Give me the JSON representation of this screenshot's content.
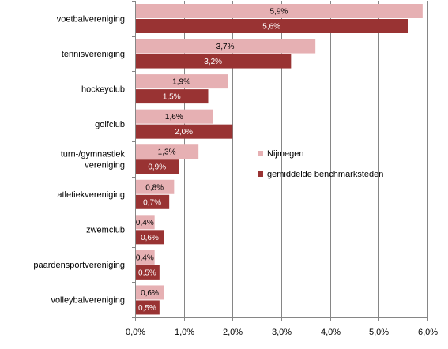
{
  "chart_data": {
    "type": "bar",
    "orientation": "horizontal",
    "categories": [
      [
        "voetbalvereniging"
      ],
      [
        "tennisvereniging"
      ],
      [
        "hockeyclub"
      ],
      [
        "golfclub"
      ],
      [
        "turn-/gymnastiek",
        "vereniging"
      ],
      [
        "atletiekvereniging"
      ],
      [
        "zwemclub"
      ],
      [
        "paardensportvereniging"
      ],
      [
        "volleybalvereniging"
      ]
    ],
    "series": [
      {
        "name": "Nijmegen",
        "color": "#e6b0b3",
        "label_color": "#000000",
        "values": [
          5.9,
          3.7,
          1.9,
          1.6,
          1.3,
          0.8,
          0.4,
          0.4,
          0.6
        ],
        "labels": [
          "5,9%",
          "3,7%",
          "1,9%",
          "1,6%",
          "1,3%",
          "0,8%",
          "0,4%",
          "0,4%",
          "0,6%"
        ]
      },
      {
        "name": "gemiddelde benchmarksteden",
        "color": "#993333",
        "label_color": "#ffffff",
        "values": [
          5.6,
          3.2,
          1.5,
          2.0,
          0.9,
          0.7,
          0.6,
          0.5,
          0.5
        ],
        "labels": [
          "5,6%",
          "3,2%",
          "1,5%",
          "2,0%",
          "0,9%",
          "0,7%",
          "0,6%",
          "0,5%",
          "0,5%"
        ]
      }
    ],
    "xlim": [
      0,
      6
    ],
    "xticks": [
      0,
      1,
      2,
      3,
      4,
      5,
      6
    ],
    "xtick_labels": [
      "0,0%",
      "1,0%",
      "2,0%",
      "3,0%",
      "4,0%",
      "5,0%",
      "6,0%"
    ],
    "grid": "vertical",
    "legend_position": "right-middle"
  }
}
